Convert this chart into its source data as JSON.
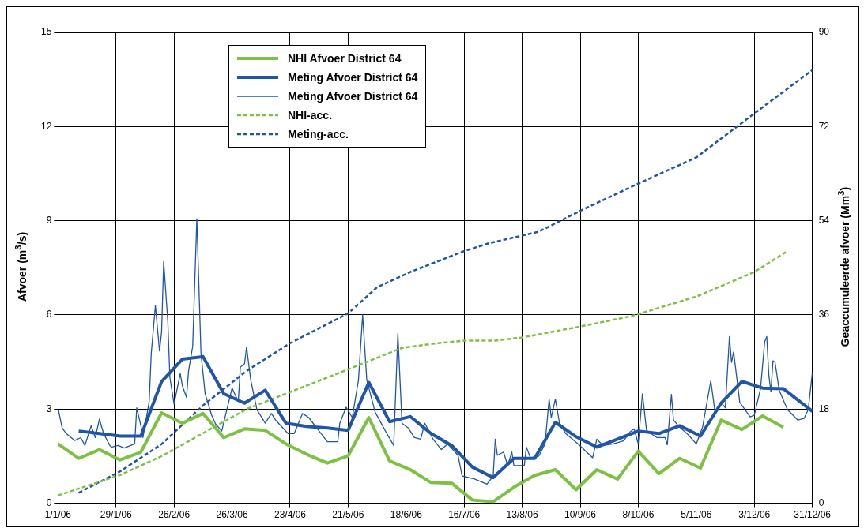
{
  "chart_data": {
    "type": "line",
    "ylabel": "Afvoer (m$^{3}$/s)",
    "y2label": "Geaccumuleerde afvoer (Mm$^{3}$)",
    "xlim": [
      "2006-01-01",
      "2006-12-31"
    ],
    "xticks": [
      {
        "value": "2006-01-01",
        "label": "1/1/06"
      },
      {
        "value": "2006-01-29",
        "label": "29/1/06"
      },
      {
        "value": "2006-02-26",
        "label": "26/2/06"
      },
      {
        "value": "2006-03-26",
        "label": "26/3/06"
      },
      {
        "value": "2006-04-23",
        "label": "23/4/06"
      },
      {
        "value": "2006-05-21",
        "label": "21/5/06"
      },
      {
        "value": "2006-06-18",
        "label": "18/6/06"
      },
      {
        "value": "2006-07-16",
        "label": "16/7/06"
      },
      {
        "value": "2006-08-13",
        "label": "13/8/06"
      },
      {
        "value": "2006-09-10",
        "label": "10/9/06"
      },
      {
        "value": "2006-10-08",
        "label": "8/10/06"
      },
      {
        "value": "2006-11-05",
        "label": "5/11/06"
      },
      {
        "value": "2006-12-03",
        "label": "3/12/06"
      },
      {
        "value": "2006-12-31",
        "label": "31/12/06"
      }
    ],
    "ylim": [
      0,
      15
    ],
    "yticks": [
      0,
      3,
      6,
      9,
      12,
      15
    ],
    "y2lim": [
      0,
      90
    ],
    "y2ticks": [
      0,
      18,
      36,
      54,
      72,
      90
    ],
    "grid": true,
    "legend": "top",
    "marker": "none",
    "series": [
      {
        "name": "NHI Afvoer District 64",
        "color": "#7dc142",
        "line_style": "solid",
        "x": [
          "2006-01-01",
          "2006-01-11",
          "2006-01-21",
          "2006-01-31",
          "2006-02-10",
          "2006-02-20",
          "2006-03-02",
          "2006-03-12",
          "2006-03-22",
          "2006-04-01",
          "2006-04-11",
          "2006-04-21",
          "2006-05-01",
          "2006-05-11",
          "2006-05-21",
          "2006-05-31",
          "2006-06-10",
          "2006-06-20",
          "2006-06-30",
          "2006-07-10",
          "2006-07-20",
          "2006-07-30",
          "2006-08-09",
          "2006-08-19",
          "2006-08-29",
          "2006-09-08",
          "2006-09-18",
          "2006-09-28",
          "2006-10-08",
          "2006-10-18",
          "2006-10-28",
          "2006-11-07",
          "2006-11-17",
          "2006-11-27",
          "2006-12-07",
          "2006-12-17"
        ],
        "values": [
          1.89,
          1.43,
          1.71,
          1.38,
          1.63,
          2.88,
          2.55,
          2.86,
          2.09,
          2.37,
          2.32,
          1.89,
          1.56,
          1.28,
          1.51,
          2.73,
          1.35,
          1.07,
          0.66,
          0.64,
          0.1,
          0.05,
          0.51,
          0.89,
          1.07,
          0.43,
          1.07,
          0.77,
          1.66,
          0.94,
          1.43,
          1.12,
          2.65,
          2.35,
          2.78,
          2.42
        ]
      },
      {
        "name": "Meting Afvoer District 64",
        "color": "#1f56a8",
        "line_style": "solid",
        "x": [
          "2006-01-11",
          "2006-01-21",
          "2006-01-31",
          "2006-02-10",
          "2006-02-20",
          "2006-03-02",
          "2006-03-12",
          "2006-03-22",
          "2006-04-01",
          "2006-04-11",
          "2006-04-21",
          "2006-05-01",
          "2006-05-11",
          "2006-05-21",
          "2006-05-31",
          "2006-06-10",
          "2006-06-20",
          "2006-06-30",
          "2006-07-10",
          "2006-07-20",
          "2006-07-30",
          "2006-08-09",
          "2006-08-19",
          "2006-08-29",
          "2006-09-08",
          "2006-09-18",
          "2006-09-28",
          "2006-10-08",
          "2006-10-18",
          "2006-10-28",
          "2006-11-07",
          "2006-11-17",
          "2006-11-27",
          "2006-12-07",
          "2006-12-17",
          "2006-12-31"
        ],
        "values": [
          2.3,
          2.22,
          2.14,
          2.14,
          3.88,
          4.59,
          4.67,
          3.49,
          3.19,
          3.6,
          2.55,
          2.45,
          2.4,
          2.32,
          3.85,
          2.6,
          2.76,
          2.22,
          1.84,
          1.15,
          0.82,
          1.43,
          1.43,
          2.58,
          2.12,
          1.79,
          2.04,
          2.3,
          2.22,
          2.47,
          2.14,
          3.19,
          3.88,
          3.67,
          3.65,
          2.93
        ]
      },
      {
        "name": "Meting Afvoer District 64",
        "color": "#1f56a8",
        "line_style": "solid",
        "x": [
          "2006-01-01",
          "2006-01-03",
          "2006-01-05",
          "2006-01-09",
          "2006-01-12",
          "2006-01-14",
          "2006-01-17",
          "2006-01-19",
          "2006-01-21",
          "2006-01-23",
          "2006-01-26",
          "2006-01-27",
          "2006-01-30",
          "2006-02-02",
          "2006-02-07",
          "2006-02-08",
          "2006-02-10",
          "2006-02-11",
          "2006-02-14",
          "2006-02-15",
          "2006-02-17",
          "2006-02-19",
          "2006-02-20",
          "2006-02-21",
          "2006-02-23",
          "2006-02-24",
          "2006-02-26",
          "2006-03-01",
          "2006-03-02",
          "2006-03-04",
          "2006-03-05",
          "2006-03-07",
          "2006-03-09",
          "2006-03-11",
          "2006-03-13",
          "2006-03-16",
          "2006-03-18",
          "2006-03-21",
          "2006-03-26",
          "2006-03-29",
          "2006-03-30",
          "2006-04-01",
          "2006-04-02",
          "2006-04-04",
          "2006-04-07",
          "2006-04-11",
          "2006-04-14",
          "2006-04-16",
          "2006-04-22",
          "2006-04-25",
          "2006-04-29",
          "2006-05-02",
          "2006-05-07",
          "2006-05-11",
          "2006-05-16",
          "2006-05-17",
          "2006-05-20",
          "2006-05-23",
          "2006-05-26",
          "2006-05-28",
          "2006-05-30",
          "2006-06-03",
          "2006-06-08",
          "2006-06-12",
          "2006-06-14",
          "2006-06-16",
          "2006-06-19",
          "2006-06-22",
          "2006-06-25",
          "2006-06-27",
          "2006-07-01",
          "2006-07-05",
          "2006-07-08",
          "2006-07-13",
          "2006-07-15",
          "2006-07-21",
          "2006-07-27",
          "2006-07-30",
          "2006-07-31",
          "2006-08-01",
          "2006-08-04",
          "2006-08-06",
          "2006-08-08",
          "2006-08-09",
          "2006-08-14",
          "2006-08-15",
          "2006-08-17",
          "2006-08-21",
          "2006-08-24",
          "2006-08-26",
          "2006-08-27",
          "2006-08-29",
          "2006-08-31",
          "2006-09-03",
          "2006-09-09",
          "2006-09-16",
          "2006-09-18",
          "2006-09-21",
          "2006-09-26",
          "2006-10-01",
          "2006-10-04",
          "2006-10-06",
          "2006-10-08",
          "2006-10-10",
          "2006-10-12",
          "2006-10-17",
          "2006-10-21",
          "2006-10-22",
          "2006-10-24",
          "2006-10-25",
          "2006-10-28",
          "2006-11-01",
          "2006-11-05",
          "2006-11-08",
          "2006-11-12",
          "2006-11-14",
          "2006-11-17",
          "2006-11-19",
          "2006-11-21",
          "2006-11-22",
          "2006-11-23",
          "2006-11-26",
          "2006-12-01",
          "2006-12-03",
          "2006-12-06",
          "2006-12-08",
          "2006-12-09",
          "2006-12-10",
          "2006-12-11",
          "2006-12-12",
          "2006-12-13",
          "2006-12-15",
          "2006-12-19",
          "2006-12-24",
          "2006-12-27",
          "2006-12-29",
          "2006-12-31"
        ],
        "values": [
          3.04,
          2.4,
          2.22,
          2.0,
          2.09,
          1.84,
          2.47,
          2.09,
          2.68,
          2.22,
          1.84,
          1.79,
          1.84,
          1.76,
          1.89,
          3.04,
          2.47,
          2.09,
          3.24,
          4.77,
          6.3,
          4.85,
          5.46,
          7.7,
          5.79,
          4.0,
          3.16,
          4.13,
          3.75,
          3.37,
          4.21,
          5.0,
          9.06,
          4.77,
          3.49,
          2.83,
          2.53,
          2.3,
          3.67,
          3.24,
          4.34,
          4.44,
          4.97,
          3.93,
          2.98,
          2.55,
          2.86,
          2.65,
          2.22,
          2.22,
          2.86,
          2.73,
          2.3,
          1.96,
          1.96,
          2.55,
          3.06,
          2.73,
          3.93,
          6.0,
          3.93,
          2.91,
          2.3,
          1.84,
          5.41,
          2.55,
          2.4,
          2.09,
          2.04,
          2.55,
          2.04,
          1.71,
          1.89,
          1.53,
          0.87,
          0.77,
          0.61,
          0.87,
          2.04,
          1.53,
          1.63,
          1.2,
          1.63,
          1.2,
          1.2,
          1.79,
          1.45,
          1.5,
          1.89,
          3.32,
          2.73,
          3.32,
          2.55,
          2.22,
          1.89,
          1.45,
          2.04,
          1.84,
          1.89,
          1.99,
          2.27,
          2.37,
          1.89,
          3.49,
          2.32,
          2.09,
          2.09,
          1.86,
          3.47,
          2.65,
          2.42,
          2.19,
          1.89,
          2.42,
          3.9,
          2.93,
          3.21,
          3.04,
          5.31,
          4.49,
          4.82,
          3.21,
          2.75,
          2.81,
          3.65,
          5.15,
          5.31,
          4.08,
          3.55,
          4.54,
          4.49,
          3.6,
          2.98,
          2.65,
          2.7,
          2.98,
          4.16
        ]
      },
      {
        "name": "NHI-acc.",
        "color": "#7dc142",
        "axis": "y2",
        "line_style": "dashed",
        "x": [
          "2006-01-01",
          "2006-01-31",
          "2006-02-20",
          "2006-04-02",
          "2006-05-21",
          "2006-06-16",
          "2006-07-01",
          "2006-07-16",
          "2006-07-31",
          "2006-08-13",
          "2006-09-09",
          "2006-10-05",
          "2006-11-05",
          "2006-12-03",
          "2006-12-19"
        ],
        "values": [
          1.5,
          5.4,
          9.0,
          18.0,
          25.6,
          29.7,
          30.5,
          31.1,
          31.1,
          31.7,
          33.7,
          35.8,
          39.5,
          44.2,
          48.2
        ]
      },
      {
        "name": "Meting-acc.",
        "color": "#1f56a8",
        "axis": "y2",
        "line_style": "dashed",
        "x": [
          "2006-01-11",
          "2006-01-31",
          "2006-02-20",
          "2006-03-12",
          "2006-04-02",
          "2006-04-23",
          "2006-05-21",
          "2006-06-04",
          "2006-06-20",
          "2006-07-16",
          "2006-07-28",
          "2006-08-21",
          "2006-09-10",
          "2006-10-08",
          "2006-11-05",
          "2006-12-03",
          "2006-12-31"
        ],
        "values": [
          2.0,
          6.1,
          11.3,
          18.7,
          25.3,
          30.6,
          36.3,
          41.3,
          44.2,
          48.2,
          49.7,
          51.9,
          55.9,
          61.1,
          66.1,
          74.5,
          82.8
        ]
      }
    ]
  }
}
